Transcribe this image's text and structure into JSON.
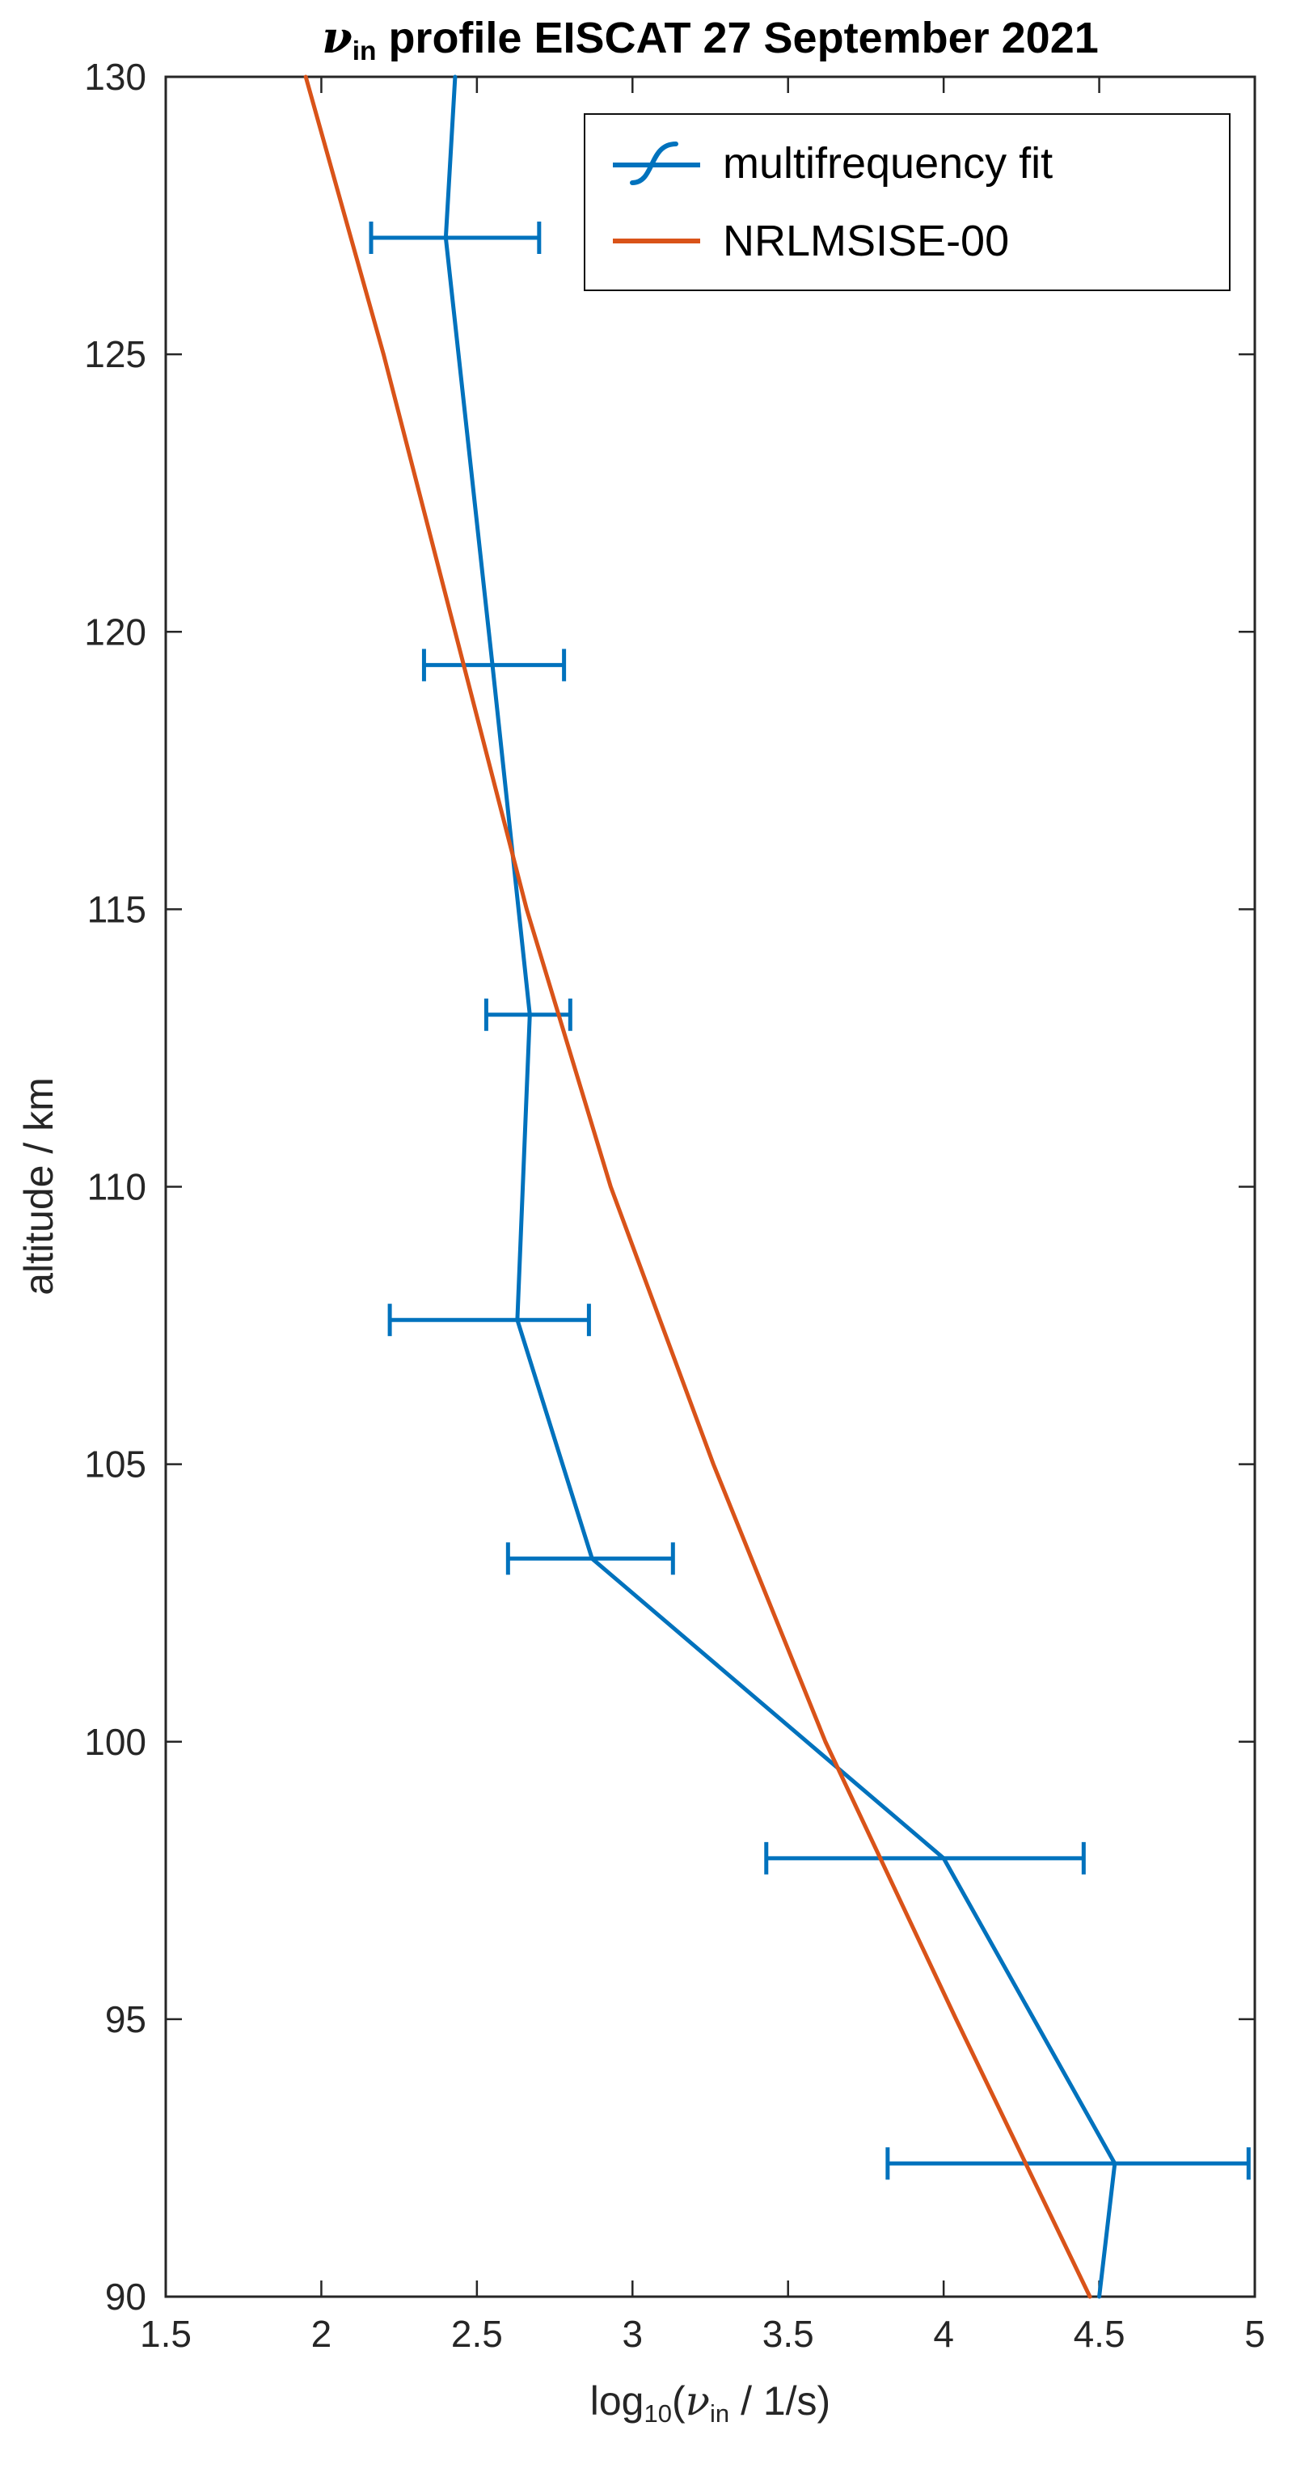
{
  "title_parts": {
    "nu": "ν",
    "nu_sub": "in",
    "rest": " profile EISCAT 27 September 2021"
  },
  "ylabel": "altitude / km",
  "xlabel_parts": {
    "log": "log",
    "log_sub": "10",
    "open": "(",
    "nu": "ν",
    "nu_sub": "in",
    "close": " / 1/s)"
  },
  "legend": {
    "items": [
      {
        "label": "multifrequency fit",
        "icon": "errorbar-sigmoid-line-icon",
        "series": 0
      },
      {
        "label": "NRLMSISE-00",
        "icon": "straight-line-icon",
        "series": 1
      }
    ]
  },
  "chart_data": {
    "type": "line",
    "title": "nu_in profile EISCAT 27 September 2021",
    "xlabel": "log10(nu_in / 1/s)",
    "ylabel": "altitude / km",
    "xlim": [
      1.5,
      5
    ],
    "ylim": [
      90,
      130
    ],
    "grid": false,
    "legend_position": "top-right-inside",
    "axis_color": "#262626",
    "x_ticks": [
      1.5,
      2,
      2.5,
      3,
      3.5,
      4,
      4.5,
      5
    ],
    "x_tick_labels": [
      "1.5",
      "2",
      "2.5",
      "3",
      "3.5",
      "4",
      "4.5",
      "5"
    ],
    "y_ticks": [
      90,
      95,
      100,
      105,
      110,
      115,
      120,
      125,
      130
    ],
    "y_tick_labels": [
      "90",
      "95",
      "100",
      "105",
      "110",
      "115",
      "120",
      "125",
      "130"
    ],
    "series": [
      {
        "name": "multifrequency fit",
        "color": "#0072BD",
        "style": "errorbar-line",
        "points": [
          {
            "alt": 130.0,
            "x": 2.43
          },
          {
            "alt": 127.1,
            "x": 2.4,
            "xlo": 2.16,
            "xhi": 2.7
          },
          {
            "alt": 119.4,
            "x": 2.55,
            "xlo": 2.33,
            "xhi": 2.78
          },
          {
            "alt": 113.1,
            "x": 2.67,
            "xlo": 2.53,
            "xhi": 2.8
          },
          {
            "alt": 107.6,
            "x": 2.63,
            "xlo": 2.22,
            "xhi": 2.86
          },
          {
            "alt": 103.3,
            "x": 2.87,
            "xlo": 2.6,
            "xhi": 3.13
          },
          {
            "alt": 97.9,
            "x": 4.0,
            "xlo": 3.43,
            "xhi": 4.45
          },
          {
            "alt": 92.4,
            "x": 4.55,
            "xlo": 3.82,
            "xhi": 4.98
          },
          {
            "alt": 90.0,
            "x": 4.5
          }
        ]
      },
      {
        "name": "NRLMSISE-00",
        "color": "#D95319",
        "style": "line",
        "points": [
          {
            "alt": 130,
            "x": 1.95
          },
          {
            "alt": 125,
            "x": 2.2
          },
          {
            "alt": 120,
            "x": 2.43
          },
          {
            "alt": 115,
            "x": 2.66
          },
          {
            "alt": 110,
            "x": 2.93
          },
          {
            "alt": 105,
            "x": 3.26
          },
          {
            "alt": 100,
            "x": 3.62
          },
          {
            "alt": 95,
            "x": 4.04
          },
          {
            "alt": 90,
            "x": 4.47
          }
        ]
      }
    ]
  }
}
